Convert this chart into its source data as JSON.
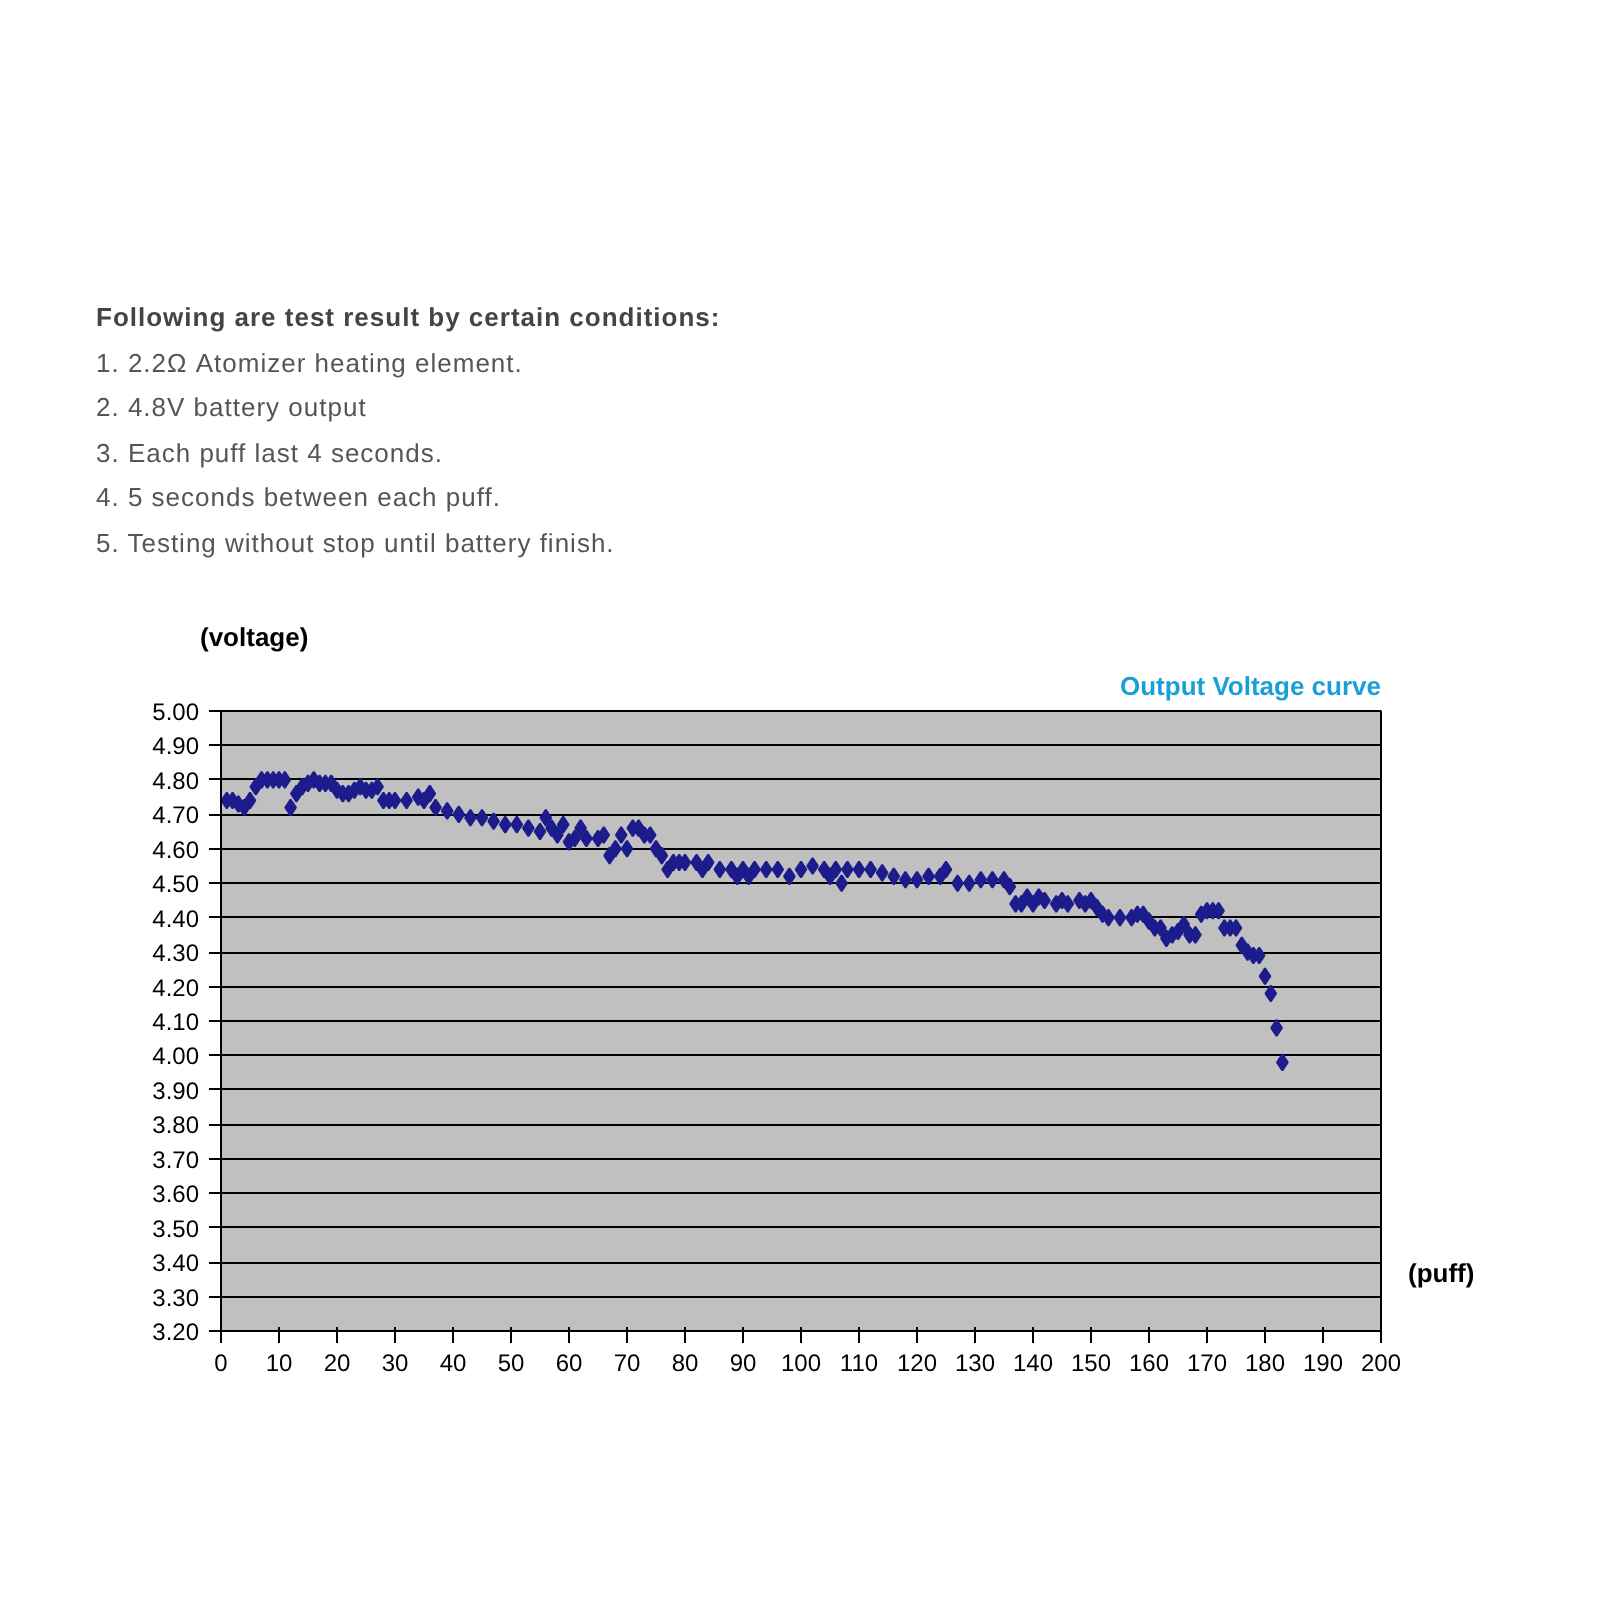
{
  "chart_data": {
    "type": "scatter",
    "title": "Output Voltage curve",
    "ylabel": "(voltage)",
    "xlabel": "(puff)",
    "annotations": [
      "Following are test result by certain conditions:",
      "1. 2.2Ω Atomizer heating element.",
      "2. 4.8V battery output",
      "3. Each puff last 4 seconds.",
      "4. 5 seconds between each puff.",
      "5. Testing without stop until battery finish."
    ],
    "x": [
      1,
      2,
      3,
      4,
      5,
      6,
      7,
      8,
      9,
      10,
      11,
      12,
      13,
      14,
      15,
      16,
      17,
      18,
      19,
      20,
      21,
      22,
      23,
      24,
      25,
      26,
      27,
      28,
      29,
      30,
      32,
      34,
      35,
      36,
      37,
      39,
      41,
      43,
      45,
      47,
      49,
      51,
      53,
      55,
      56,
      57,
      58,
      59,
      60,
      61,
      62,
      63,
      65,
      66,
      67,
      68,
      69,
      70,
      71,
      72,
      73,
      74,
      75,
      76,
      77,
      78,
      79,
      80,
      82,
      83,
      84,
      86,
      88,
      89,
      90,
      91,
      92,
      94,
      96,
      98,
      100,
      102,
      104,
      105,
      106,
      107,
      108,
      110,
      112,
      114,
      116,
      118,
      120,
      122,
      124,
      125,
      127,
      129,
      131,
      133,
      135,
      136,
      137,
      138,
      139,
      140,
      141,
      142,
      144,
      145,
      146,
      148,
      149,
      150,
      151,
      152,
      153,
      155,
      157,
      158,
      159,
      160,
      161,
      162,
      163,
      164,
      165,
      166,
      167,
      168,
      169,
      170,
      171,
      172,
      173,
      174,
      175,
      176,
      177,
      178,
      179,
      180,
      181,
      182,
      183
    ],
    "series": [
      {
        "color": "#1c1c8c",
        "values": [
          4.74,
          4.74,
          4.73,
          4.72,
          4.74,
          4.78,
          4.8,
          4.8,
          4.8,
          4.8,
          4.8,
          4.72,
          4.76,
          4.78,
          4.79,
          4.8,
          4.79,
          4.79,
          4.79,
          4.77,
          4.76,
          4.76,
          4.77,
          4.78,
          4.77,
          4.77,
          4.78,
          4.74,
          4.74,
          4.74,
          4.74,
          4.75,
          4.74,
          4.76,
          4.72,
          4.71,
          4.7,
          4.69,
          4.69,
          4.68,
          4.67,
          4.67,
          4.66,
          4.65,
          4.69,
          4.66,
          4.64,
          4.67,
          4.62,
          4.63,
          4.66,
          4.63,
          4.63,
          4.64,
          4.58,
          4.6,
          4.64,
          4.6,
          4.66,
          4.66,
          4.64,
          4.64,
          4.6,
          4.58,
          4.54,
          4.56,
          4.56,
          4.56,
          4.56,
          4.54,
          4.56,
          4.54,
          4.54,
          4.52,
          4.54,
          4.52,
          4.54,
          4.54,
          4.54,
          4.52,
          4.54,
          4.55,
          4.54,
          4.52,
          4.54,
          4.5,
          4.54,
          4.54,
          4.54,
          4.53,
          4.52,
          4.51,
          4.51,
          4.52,
          4.52,
          4.54,
          4.5,
          4.5,
          4.51,
          4.51,
          4.51,
          4.49,
          4.44,
          4.44,
          4.46,
          4.44,
          4.46,
          4.45,
          4.44,
          4.45,
          4.44,
          4.45,
          4.44,
          4.45,
          4.43,
          4.41,
          4.4,
          4.4,
          4.4,
          4.41,
          4.41,
          4.39,
          4.37,
          4.37,
          4.34,
          4.35,
          4.36,
          4.38,
          4.35,
          4.35,
          4.41,
          4.42,
          4.42,
          4.42,
          4.37,
          4.37,
          4.37,
          4.32,
          4.3,
          4.29,
          4.29,
          4.23,
          4.18,
          4.08,
          3.98
        ]
      }
    ],
    "xlim": [
      0,
      200
    ],
    "xticks": [
      0,
      10,
      20,
      30,
      40,
      50,
      60,
      70,
      80,
      90,
      100,
      110,
      120,
      130,
      140,
      150,
      160,
      170,
      180,
      190,
      200
    ],
    "ylim": [
      3.2,
      5.0
    ],
    "yticks": [
      {
        "value": 3.2,
        "label": "3.20"
      },
      {
        "value": 3.3,
        "label": "3.30"
      },
      {
        "value": 3.4,
        "label": "3.40"
      },
      {
        "value": 3.5,
        "label": "3.50"
      },
      {
        "value": 3.6,
        "label": "3.60"
      },
      {
        "value": 3.7,
        "label": "3.70"
      },
      {
        "value": 3.8,
        "label": "3.80"
      },
      {
        "value": 3.9,
        "label": "3.90"
      },
      {
        "value": 4.0,
        "label": "4.00"
      },
      {
        "value": 4.1,
        "label": "4.10"
      },
      {
        "value": 4.2,
        "label": "4.20"
      },
      {
        "value": 4.3,
        "label": "4.30"
      },
      {
        "value": 4.4,
        "label": "4.40"
      },
      {
        "value": 4.5,
        "label": "4.50"
      },
      {
        "value": 4.6,
        "label": "4.60"
      },
      {
        "value": 4.7,
        "label": "4.70"
      },
      {
        "value": 4.8,
        "label": "4.80"
      },
      {
        "value": 4.9,
        "label": "4.90"
      },
      {
        "value": 5.0,
        "label": "5.00"
      }
    ],
    "grid": "y",
    "marker": "diamond"
  }
}
